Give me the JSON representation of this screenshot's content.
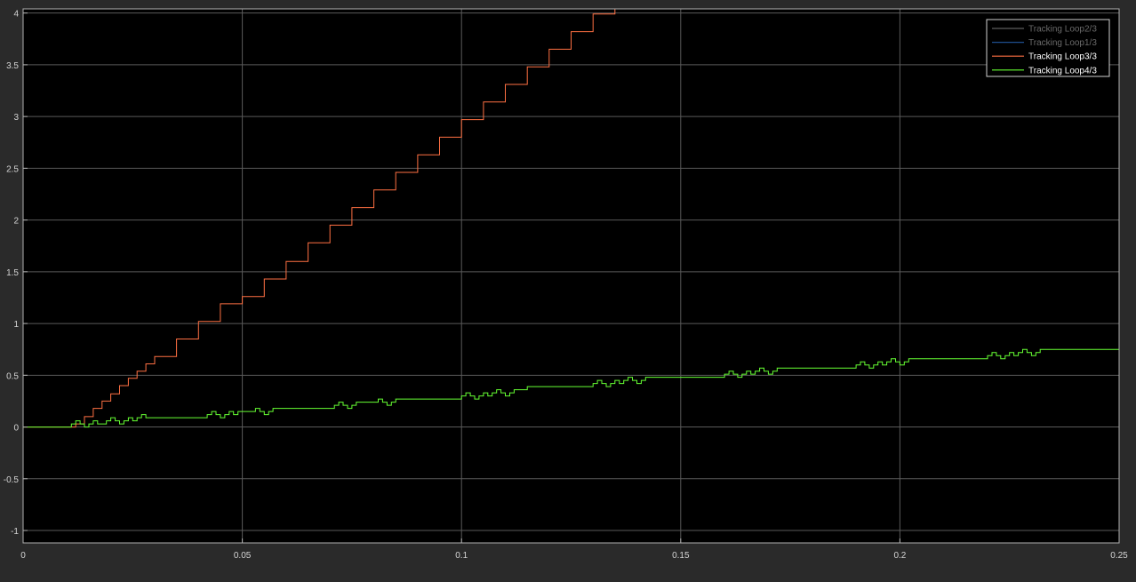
{
  "chart_data": {
    "type": "line",
    "title": "",
    "xlabel": "",
    "ylabel": "",
    "xlim": [
      0,
      0.25
    ],
    "ylim": [
      -1.12,
      4.04
    ],
    "grid": true,
    "legend_position": "top-right",
    "x_ticks": [
      0,
      0.05,
      0.1,
      0.15,
      0.2,
      0.25
    ],
    "x_tick_labels": [
      "0",
      "0.05",
      "0.1",
      "0.15",
      "0.2",
      "0.25"
    ],
    "y_ticks": [
      -1,
      -0.5,
      0,
      0.5,
      1,
      1.5,
      2,
      2.5,
      3,
      3.5,
      4
    ],
    "y_tick_labels": [
      "-1",
      "-0.5",
      "0",
      "0.5",
      "1",
      "1.5",
      "2",
      "2.5",
      "3",
      "3.5",
      "4"
    ],
    "colors": {
      "figure_background": "#2a2a2a",
      "axes_background": "#000000",
      "grid": "#5a5a5a",
      "axes_border": "#b0b0b0",
      "tick_text": "#d4d4d4",
      "legend_background": "#000000",
      "legend_border": "#d0d0d0"
    },
    "series": [
      {
        "name": "Tracking Loop2/3",
        "color": "#5c5c5c",
        "label_color": "#6a6a6a",
        "style": "step",
        "x": [],
        "y": []
      },
      {
        "name": "Tracking Loop1/3",
        "color": "#1f4f8f",
        "label_color": "#6a6a6a",
        "style": "step",
        "x": [],
        "y": []
      },
      {
        "name": "Tracking Loop3/3",
        "color": "#ff7043",
        "label_color": "#ffffff",
        "style": "step",
        "x": [
          0,
          0.011,
          0.012,
          0.014,
          0.016,
          0.018,
          0.02,
          0.022,
          0.024,
          0.026,
          0.028,
          0.03,
          0.035,
          0.04,
          0.045,
          0.05,
          0.055,
          0.06,
          0.065,
          0.07,
          0.075,
          0.08,
          0.085,
          0.09,
          0.095,
          0.1,
          0.105,
          0.11,
          0.115,
          0.12,
          0.125,
          0.13,
          0.135,
          0.14
        ],
        "y": [
          0,
          0,
          0.03,
          0.1,
          0.18,
          0.25,
          0.32,
          0.4,
          0.47,
          0.54,
          0.61,
          0.68,
          0.85,
          1.02,
          1.19,
          1.26,
          1.43,
          1.6,
          1.78,
          1.95,
          2.12,
          2.29,
          2.46,
          2.63,
          2.8,
          2.97,
          3.14,
          3.31,
          3.48,
          3.65,
          3.82,
          3.99,
          4.16,
          4.33
        ]
      },
      {
        "name": "Tracking Loop4/3",
        "color": "#66ff33",
        "label_color": "#ffffff",
        "style": "step",
        "x": [
          0,
          0.011,
          0.012,
          0.013,
          0.014,
          0.015,
          0.016,
          0.017,
          0.018,
          0.019,
          0.02,
          0.021,
          0.022,
          0.023,
          0.024,
          0.025,
          0.026,
          0.027,
          0.028,
          0.029,
          0.042,
          0.043,
          0.044,
          0.045,
          0.046,
          0.047,
          0.048,
          0.049,
          0.052,
          0.053,
          0.054,
          0.055,
          0.056,
          0.057,
          0.058,
          0.059,
          0.071,
          0.072,
          0.073,
          0.074,
          0.075,
          0.076,
          0.08,
          0.081,
          0.082,
          0.083,
          0.084,
          0.085,
          0.086,
          0.087,
          0.1,
          0.101,
          0.102,
          0.103,
          0.104,
          0.105,
          0.106,
          0.107,
          0.108,
          0.109,
          0.11,
          0.111,
          0.112,
          0.113,
          0.114,
          0.115,
          0.116,
          0.117,
          0.13,
          0.131,
          0.132,
          0.133,
          0.134,
          0.135,
          0.136,
          0.137,
          0.138,
          0.139,
          0.14,
          0.141,
          0.142,
          0.143,
          0.144,
          0.145,
          0.146,
          0.147,
          0.16,
          0.161,
          0.162,
          0.163,
          0.164,
          0.165,
          0.166,
          0.167,
          0.168,
          0.169,
          0.17,
          0.171,
          0.172,
          0.173,
          0.174,
          0.175,
          0.176,
          0.177,
          0.19,
          0.191,
          0.192,
          0.193,
          0.194,
          0.195,
          0.196,
          0.197,
          0.198,
          0.199,
          0.2,
          0.201,
          0.202,
          0.203,
          0.204,
          0.205,
          0.206,
          0.207,
          0.22,
          0.221,
          0.222,
          0.223,
          0.224,
          0.225,
          0.226,
          0.227,
          0.228,
          0.229,
          0.23,
          0.231,
          0.232,
          0.233,
          0.234,
          0.235,
          0.236,
          0.237,
          0.25
        ],
        "y": [
          0,
          0.03,
          0.06,
          0.03,
          0.0,
          0.03,
          0.06,
          0.03,
          0.03,
          0.06,
          0.09,
          0.06,
          0.03,
          0.06,
          0.09,
          0.06,
          0.09,
          0.12,
          0.09,
          0.09,
          0.12,
          0.15,
          0.12,
          0.09,
          0.12,
          0.15,
          0.12,
          0.15,
          0.15,
          0.18,
          0.15,
          0.12,
          0.15,
          0.18,
          0.18,
          0.18,
          0.21,
          0.24,
          0.21,
          0.18,
          0.21,
          0.24,
          0.24,
          0.27,
          0.24,
          0.21,
          0.24,
          0.27,
          0.27,
          0.27,
          0.3,
          0.33,
          0.3,
          0.27,
          0.3,
          0.33,
          0.3,
          0.33,
          0.36,
          0.33,
          0.3,
          0.33,
          0.36,
          0.36,
          0.36,
          0.39,
          0.39,
          0.39,
          0.42,
          0.45,
          0.42,
          0.39,
          0.42,
          0.45,
          0.42,
          0.45,
          0.48,
          0.45,
          0.42,
          0.45,
          0.48,
          0.48,
          0.48,
          0.48,
          0.48,
          0.48,
          0.51,
          0.54,
          0.51,
          0.48,
          0.51,
          0.54,
          0.51,
          0.54,
          0.57,
          0.54,
          0.51,
          0.54,
          0.57,
          0.57,
          0.57,
          0.57,
          0.57,
          0.57,
          0.6,
          0.63,
          0.6,
          0.57,
          0.6,
          0.63,
          0.6,
          0.63,
          0.66,
          0.63,
          0.6,
          0.63,
          0.66,
          0.66,
          0.66,
          0.66,
          0.66,
          0.66,
          0.69,
          0.72,
          0.69,
          0.66,
          0.69,
          0.72,
          0.69,
          0.72,
          0.75,
          0.72,
          0.69,
          0.72,
          0.75,
          0.75,
          0.75,
          0.75,
          0.75,
          0.75,
          0.75
        ]
      }
    ]
  }
}
